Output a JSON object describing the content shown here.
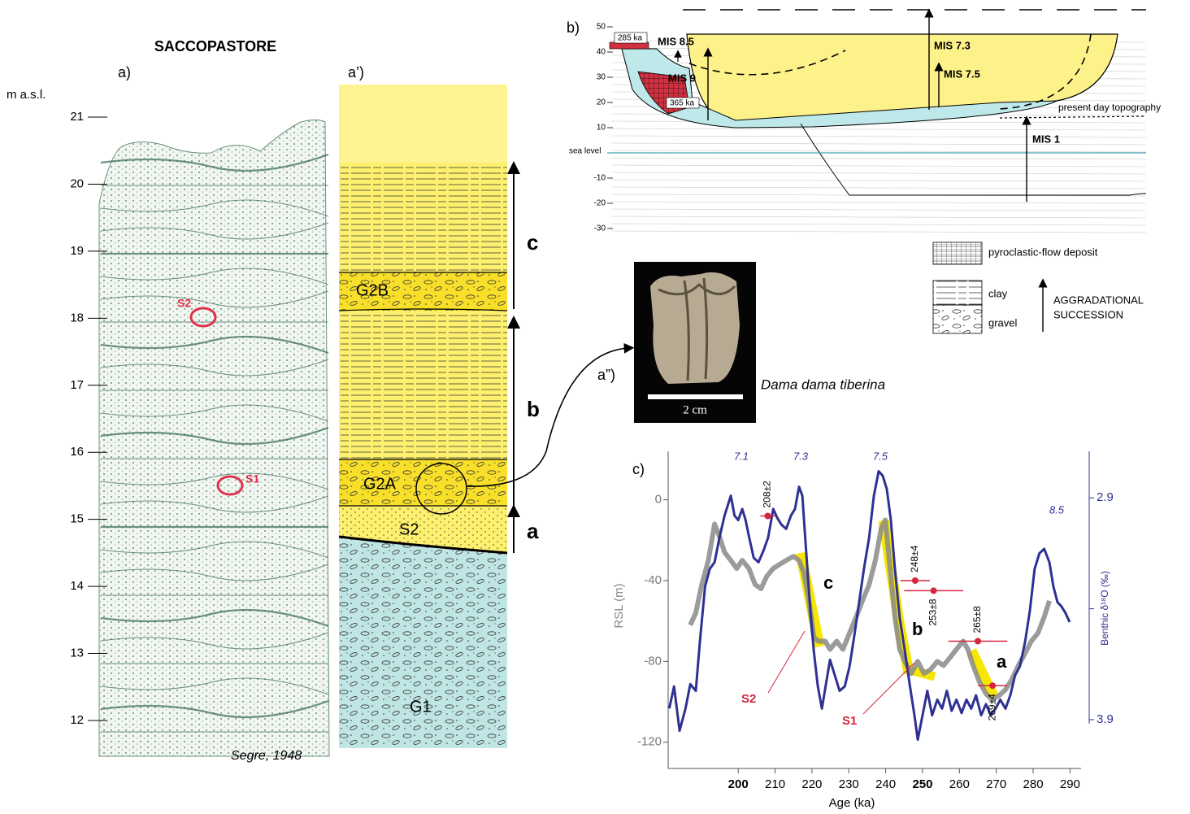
{
  "panel_a": {
    "title": "SACCOPASTORE",
    "label": "a)",
    "axis_label": "m a.s.l.",
    "ticks": [
      21,
      20,
      19,
      18,
      17,
      16,
      15,
      14,
      13,
      12
    ],
    "samples": [
      "S2",
      "S1"
    ],
    "credit": "Segre, 1948"
  },
  "panel_a_prime": {
    "label": "a’)",
    "units": [
      "G2B",
      "G2A",
      "S2",
      "G1"
    ],
    "sequences": [
      "c",
      "b",
      "a"
    ]
  },
  "panel_a_dprime": {
    "label": "a”)",
    "scale": "2 cm",
    "species": "Dama dama tiberina"
  },
  "panel_b": {
    "label": "b)",
    "yticks": [
      50,
      40,
      30,
      20,
      10,
      -10,
      -20,
      -30
    ],
    "sea_level": "sea level",
    "annotations": {
      "mis_8_5": "MIS 8.5",
      "age_285": "285 ka",
      "mis_9": "MIS 9",
      "age_365": "365 ka",
      "mis_7_3": "MIS 7.3",
      "mis_7_5": "MIS 7.5",
      "mis_1": "MIS 1",
      "topography": "present day topography"
    },
    "legend": {
      "pyroclastic": "pyroclastic-flow deposit",
      "clay": "clay",
      "gravel": "gravel",
      "succession": [
        "AGGRADATIONAL",
        "SUCCESSION"
      ]
    }
  },
  "chart_data": {
    "type": "line",
    "label": "c)",
    "xlabel": "Age (ka)",
    "ylabel": "RSL (m)",
    "y2label": "Benthic δ¹⁸O (‰)",
    "xlim": [
      181,
      293
    ],
    "xticks": [
      200,
      210,
      220,
      230,
      240,
      250,
      260,
      270,
      280,
      290
    ],
    "xtick_bold": [
      true,
      false,
      false,
      false,
      false,
      true,
      false,
      false,
      false,
      false
    ],
    "ylim": [
      -133,
      24
    ],
    "yticks": [
      0,
      -40,
      -80,
      -120
    ],
    "y2lim": [
      4.12,
      2.69
    ],
    "y2ticks": [
      2.9,
      3.9
    ],
    "series": [
      {
        "color": "#2e3192",
        "axis": "y2",
        "x": [
          181.3,
          182.6,
          184.1,
          185.7,
          187,
          188.5,
          189.6,
          191,
          192.3,
          193.6,
          194.9,
          196.3,
          198,
          199,
          200,
          201.1,
          202,
          203,
          204.2,
          205.5,
          206.8,
          208.1,
          209.5,
          210.6,
          211.7,
          213,
          214.3,
          215.4,
          216.5,
          217.4,
          218.3,
          219.4,
          220.5,
          221.6,
          222.7,
          223.8,
          224.9,
          226.2,
          227.5,
          228.9,
          230.2,
          231.5,
          232.8,
          234.1,
          235.5,
          236.8,
          238.1,
          239.2,
          240.3,
          241.4,
          242.5,
          243.8,
          245.2,
          246.5,
          247.8,
          248.7,
          250,
          251.3,
          252.6,
          254,
          255.3,
          256.6,
          257.9,
          259.2,
          260.6,
          261.9,
          263.2,
          264.5,
          265.9,
          267.2,
          268.5,
          269.8,
          271.1,
          272.5,
          273.8,
          275.1,
          276.4,
          277.8,
          279.1,
          280.4,
          281.7,
          283,
          284.4,
          285.5,
          286.6,
          287.7,
          288.8,
          289.9
        ],
        "values": [
          3.85,
          3.75,
          3.95,
          3.85,
          3.74,
          3.77,
          3.55,
          3.3,
          3.22,
          3.19,
          3.08,
          2.98,
          2.89,
          2.98,
          3.0,
          2.95,
          3.0,
          3.08,
          3.17,
          3.19,
          3.14,
          3.08,
          2.95,
          2.99,
          3.02,
          3.04,
          2.98,
          2.95,
          2.85,
          2.89,
          3.11,
          3.37,
          3.59,
          3.75,
          3.85,
          3.74,
          3.63,
          3.7,
          3.77,
          3.75,
          3.66,
          3.52,
          3.37,
          3.22,
          3.08,
          2.89,
          2.78,
          2.8,
          2.86,
          3.0,
          3.22,
          3.44,
          3.59,
          3.74,
          3.88,
          3.99,
          3.88,
          3.77,
          3.88,
          3.81,
          3.85,
          3.77,
          3.86,
          3.81,
          3.87,
          3.81,
          3.85,
          3.79,
          3.88,
          3.83,
          3.88,
          3.85,
          3.81,
          3.85,
          3.79,
          3.7,
          3.66,
          3.55,
          3.41,
          3.22,
          3.15,
          3.13,
          3.19,
          3.3,
          3.37,
          3.39,
          3.42,
          3.46
        ]
      },
      {
        "color": "#8a8a8a",
        "x": [
          187,
          188.5,
          190.1,
          191.9,
          193.6,
          194.9,
          196.3,
          198,
          199.6,
          201.1,
          202.9,
          204.6,
          206.2,
          207.7,
          209.5,
          211.2,
          213,
          215,
          216.5,
          217.8,
          219.2,
          220.5,
          221.8,
          223.6,
          224.9,
          226.7,
          228.4,
          230.2,
          232,
          233.7,
          235.5,
          237.2,
          238.8,
          239.9,
          241.2,
          242.5,
          243.8,
          245.2,
          246.9,
          248.7,
          250.4,
          252.2,
          254,
          255.7,
          257.5,
          259.2,
          261,
          262.3,
          263.7,
          265.4,
          267.2,
          268.9,
          270.7,
          272.5,
          274.2,
          276,
          277.8,
          279.5,
          281.3,
          283,
          284.4
        ],
        "values": [
          -62,
          -56,
          -42,
          -30,
          -12,
          -18,
          -26,
          -30,
          -34,
          -30,
          -34,
          -42,
          -44,
          -38,
          -34,
          -32,
          -30,
          -28,
          -30,
          -36,
          -50,
          -68,
          -70,
          -70,
          -74,
          -70,
          -74,
          -66,
          -58,
          -50,
          -42,
          -30,
          -14,
          -10,
          -34,
          -58,
          -74,
          -80,
          -86,
          -80,
          -86,
          -84,
          -80,
          -82,
          -78,
          -74,
          -70,
          -74,
          -82,
          -90,
          -96,
          -99,
          -97,
          -94,
          -89,
          -82,
          -76,
          -70,
          -66,
          -58,
          -50
        ]
      }
    ],
    "dates": {
      "color": "#d7263d",
      "x": [
        208,
        248,
        253,
        265,
        269
      ],
      "xerr": [
        2,
        4,
        8,
        8,
        4
      ],
      "values": [
        -8,
        -40,
        -45,
        -70,
        -92
      ],
      "labels": [
        "208±2",
        "248±4",
        "253±8",
        "265±8",
        "269±4"
      ]
    },
    "mis_labels": [
      "7.1",
      "7.3",
      "7.5",
      "8.5"
    ],
    "segment_labels": [
      "c",
      "b",
      "a"
    ],
    "sample_labels": [
      "S2",
      "S1"
    ]
  }
}
